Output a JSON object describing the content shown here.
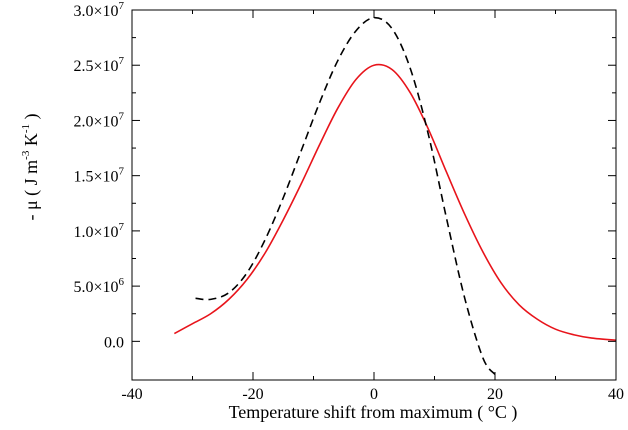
{
  "chart_data": {
    "type": "line",
    "title": "",
    "xlabel": "Temperature shift from maximum ( °C )",
    "ylabel": "- μ   ( J m",
    "ylabel_parts": [
      "- μ   ( J m",
      "-3",
      " K",
      "-1",
      " )"
    ],
    "xlim": [
      -40,
      40
    ],
    "ylim": [
      -3500000,
      30000000
    ],
    "grid": false,
    "legend": "none",
    "x_ticks": [
      {
        "value": -40,
        "label": "-40"
      },
      {
        "value": -20,
        "label": "-20"
      },
      {
        "value": 0,
        "label": "0"
      },
      {
        "value": 20,
        "label": "20"
      },
      {
        "value": 40,
        "label": "40"
      }
    ],
    "y_ticks": [
      {
        "value": 0,
        "base": "0.0",
        "exp": ""
      },
      {
        "value": 5000000,
        "base": "5.0×10",
        "exp": "6"
      },
      {
        "value": 10000000,
        "base": "1.0×10",
        "exp": "7"
      },
      {
        "value": 15000000,
        "base": "1.5×10",
        "exp": "7"
      },
      {
        "value": 20000000,
        "base": "2.0×10",
        "exp": "7"
      },
      {
        "value": 25000000,
        "base": "2.5×10",
        "exp": "7"
      },
      {
        "value": 30000000,
        "base": "3.0×10",
        "exp": "7"
      }
    ],
    "series": [
      {
        "color": "#e8141b",
        "dash": "solid",
        "x": [
          -33,
          -30,
          -27,
          -24,
          -21,
          -18,
          -15,
          -12,
          -9,
          -6,
          -3,
          0,
          3,
          6,
          9,
          12,
          15,
          18,
          21,
          24,
          27,
          30,
          33,
          36,
          40
        ],
        "y": [
          700000,
          1600000,
          2500000,
          3800000,
          5600000,
          8000000,
          11000000,
          14300000,
          17800000,
          21100000,
          23700000,
          25000000,
          24600000,
          22500000,
          19200000,
          15300000,
          11500000,
          8100000,
          5300000,
          3300000,
          2000000,
          1100000,
          600000,
          300000,
          100000
        ]
      },
      {
        "color": "#000000",
        "dash": "dashed",
        "x": [
          -29.5,
          -27,
          -24,
          -21,
          -18,
          -15,
          -12,
          -9,
          -6,
          -3,
          0,
          3,
          6,
          9,
          12,
          15,
          18,
          20
        ],
        "y": [
          3900000,
          3800000,
          4400000,
          6200000,
          9200000,
          13000000,
          17300000,
          21600000,
          25400000,
          28100000,
          29300000,
          28300000,
          24700000,
          18700000,
          11100000,
          3900000,
          -1500000,
          -3000000
        ]
      }
    ]
  }
}
